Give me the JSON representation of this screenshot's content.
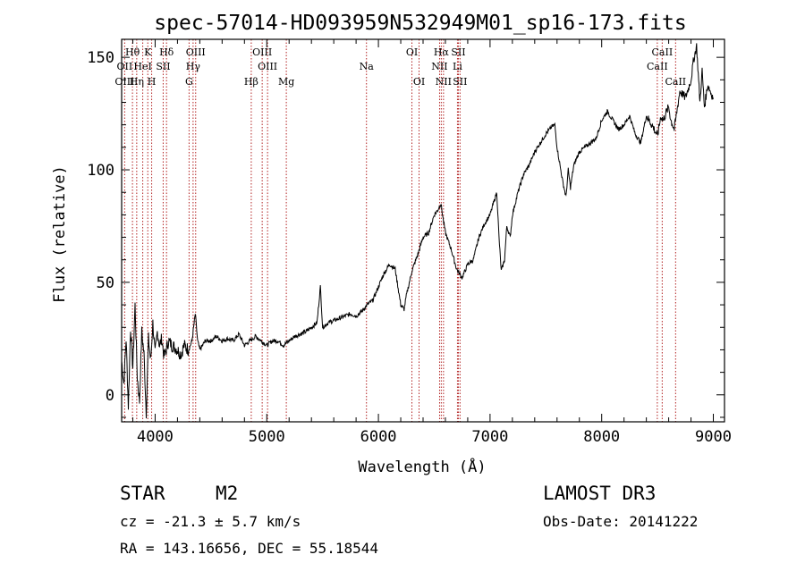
{
  "chart_data": {
    "type": "line",
    "title": "spec-57014-HD093959N532949M01_sp16-173.fits",
    "xlabel": "Wavelength (Å)",
    "ylabel": "Flux (relative)",
    "xlim": [
      3700,
      9100
    ],
    "ylim": [
      -12,
      158
    ],
    "xticks": [
      4000,
      5000,
      6000,
      7000,
      8000,
      9000
    ],
    "xtick_labels": [
      "4000",
      "5000",
      "6000",
      "7000",
      "8000",
      "9000"
    ],
    "yticks": [
      0,
      50,
      100,
      150
    ],
    "ytick_labels": [
      "0",
      "50",
      "100",
      "150"
    ],
    "series": [
      {
        "name": "spectrum",
        "x": [
          3700,
          3720,
          3740,
          3760,
          3780,
          3800,
          3820,
          3840,
          3860,
          3880,
          3900,
          3920,
          3940,
          3960,
          3980,
          4000,
          4020,
          4040,
          4060,
          4080,
          4100,
          4120,
          4150,
          4180,
          4200,
          4230,
          4260,
          4300,
          4330,
          4360,
          4380,
          4400,
          4450,
          4500,
          4550,
          4600,
          4650,
          4700,
          4750,
          4800,
          4850,
          4900,
          4950,
          5000,
          5050,
          5100,
          5150,
          5200,
          5250,
          5300,
          5350,
          5400,
          5450,
          5480,
          5500,
          5550,
          5600,
          5650,
          5700,
          5750,
          5800,
          5850,
          5900,
          5950,
          6000,
          6050,
          6100,
          6150,
          6200,
          6230,
          6250,
          6300,
          6350,
          6400,
          6450,
          6500,
          6530,
          6560,
          6580,
          6600,
          6650,
          6700,
          6750,
          6800,
          6850,
          6900,
          6950,
          7000,
          7030,
          7060,
          7080,
          7100,
          7130,
          7150,
          7180,
          7200,
          7250,
          7300,
          7350,
          7400,
          7450,
          7500,
          7550,
          7580,
          7600,
          7650,
          7680,
          7700,
          7720,
          7750,
          7800,
          7850,
          7900,
          7950,
          8000,
          8050,
          8100,
          8150,
          8200,
          8250,
          8300,
          8350,
          8400,
          8450,
          8500,
          8530,
          8550,
          8600,
          8620,
          8650,
          8700,
          8750,
          8800,
          8820,
          8850,
          8880,
          8900,
          8920,
          8950,
          8980,
          9000
        ],
        "y": [
          15,
          5,
          25,
          -5,
          30,
          12,
          40,
          8,
          -3,
          28,
          18,
          -8,
          25,
          15,
          32,
          18,
          28,
          22,
          25,
          17,
          20,
          24,
          22,
          21,
          20,
          18,
          22,
          20,
          24,
          36,
          24,
          20,
          24,
          24,
          26,
          24,
          25,
          24,
          27,
          22,
          24,
          26,
          24,
          22,
          24,
          24,
          22,
          24,
          26,
          27,
          28,
          30,
          32,
          48,
          30,
          32,
          33,
          34,
          35,
          36,
          35,
          37,
          40,
          42,
          48,
          54,
          58,
          56,
          40,
          38,
          44,
          55,
          62,
          70,
          72,
          80,
          82,
          85,
          78,
          72,
          65,
          56,
          52,
          58,
          60,
          70,
          76,
          80,
          85,
          90,
          70,
          55,
          60,
          75,
          70,
          80,
          90,
          98,
          102,
          108,
          112,
          116,
          119,
          120,
          110,
          95,
          88,
          100,
          92,
          102,
          108,
          110,
          112,
          114,
          122,
          126,
          122,
          118,
          120,
          124,
          116,
          112,
          124,
          120,
          115,
          124,
          122,
          128,
          122,
          118,
          135,
          132,
          140,
          148,
          155,
          130,
          144,
          128,
          138,
          134,
          132
        ]
      }
    ],
    "lines": {
      "labels_row1": [
        {
          "label": "Hθ",
          "x": 3797
        },
        {
          "label": "K",
          "x": 3934
        },
        {
          "label": "Hδ",
          "x": 4102
        },
        {
          "label": "OIII",
          "x": 4363
        },
        {
          "label": "OIII",
          "x": 4959
        },
        {
          "label": "OI",
          "x": 6300
        },
        {
          "label": "Hα",
          "x": 6563
        },
        {
          "label": "SII",
          "x": 6716
        },
        {
          "label": "CaII",
          "x": 8542
        }
      ],
      "labels_row2": [
        {
          "label": "OII",
          "x": 3727
        },
        {
          "label": "HeI",
          "x": 3889
        },
        {
          "label": "SII",
          "x": 4072
        },
        {
          "label": "Hγ",
          "x": 4340
        },
        {
          "label": "OIII",
          "x": 5007
        },
        {
          "label": "Na",
          "x": 5893
        },
        {
          "label": "NII",
          "x": 6548
        },
        {
          "label": "Li",
          "x": 6708
        },
        {
          "label": "CaII",
          "x": 8498
        }
      ],
      "labels_row3": [
        {
          "label": "OIII",
          "x": 3727
        },
        {
          "label": "Hη",
          "x": 3835
        },
        {
          "label": "H",
          "x": 3969
        },
        {
          "label": "G",
          "x": 4304
        },
        {
          "label": "Hβ",
          "x": 4861
        },
        {
          "label": "Mg",
          "x": 5175
        },
        {
          "label": "OI",
          "x": 6364
        },
        {
          "label": "NII",
          "x": 6583
        },
        {
          "label": "SII",
          "x": 6731
        },
        {
          "label": "CaII",
          "x": 8662
        }
      ],
      "dotted_positions": [
        3727,
        3797,
        3835,
        3889,
        3934,
        3969,
        4072,
        4102,
        4304,
        4340,
        4363,
        4861,
        4959,
        5007,
        5175,
        5893,
        6300,
        6364,
        6548,
        6563,
        6583,
        6708,
        6716,
        6731,
        8498,
        8542,
        8662
      ]
    }
  },
  "footer": {
    "object_type": "STAR",
    "subclass": "M2",
    "survey": "LAMOST DR3",
    "redshift": "cz = -21.3 ± 5.7 km/s",
    "obs_date": "Obs-Date: 20141222",
    "coords": "RA = 143.16656, DEC =  55.18544"
  }
}
